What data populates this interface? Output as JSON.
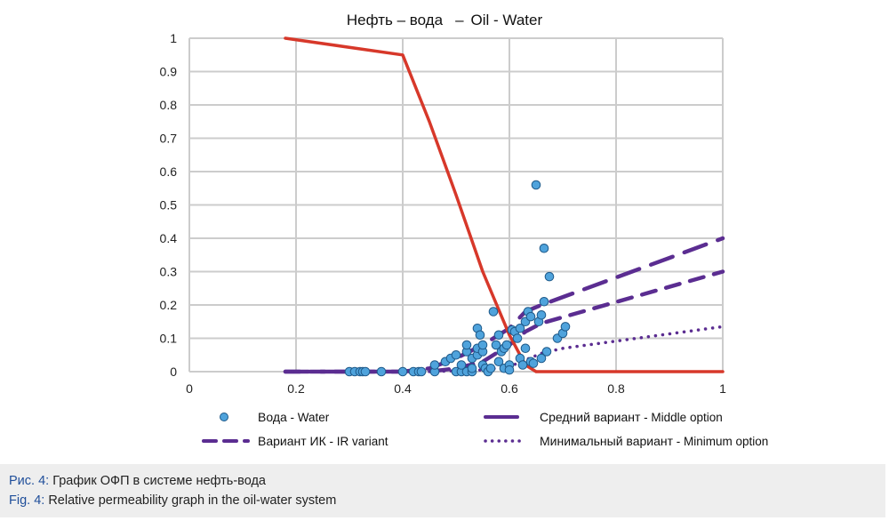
{
  "chart_data": {
    "type": "scatter",
    "title_ru": "Нефть – вода",
    "title_sep": "–",
    "title_en": "Oil - Water",
    "xlabel": "",
    "ylabel": "",
    "xlim": [
      0,
      1
    ],
    "ylim": [
      0,
      1
    ],
    "x_ticks": [
      "0",
      "0.2",
      "0.4",
      "0.6",
      "0.8",
      "1"
    ],
    "y_ticks": [
      "0",
      "0.1",
      "0.2",
      "0.3",
      "0.4",
      "0.5",
      "0.6",
      "0.7",
      "0.8",
      "0.9",
      "1"
    ],
    "grid": true,
    "legend_position": "bottom",
    "colors": {
      "oil": "#d7382a",
      "water_fill": "#4fa3dc",
      "water_edge": "#1f5a8a",
      "variant": "#5b2d91",
      "grid": "#cccccc"
    },
    "series": [
      {
        "name": "Oil",
        "kind": "line",
        "style": "solid",
        "color_key": "oil",
        "x": [
          0.18,
          0.4,
          0.45,
          0.5,
          0.55,
          0.6,
          0.63,
          0.65,
          1.0
        ],
        "y": [
          1.0,
          0.95,
          0.75,
          0.53,
          0.3,
          0.11,
          0.02,
          0.0,
          0.0
        ]
      },
      {
        "name_ru": "Вода",
        "name_en": "Water",
        "kind": "scatter",
        "points": [
          [
            0.3,
            0
          ],
          [
            0.31,
            0
          ],
          [
            0.32,
            0
          ],
          [
            0.325,
            0
          ],
          [
            0.33,
            0
          ],
          [
            0.36,
            0
          ],
          [
            0.4,
            0
          ],
          [
            0.42,
            0
          ],
          [
            0.43,
            0
          ],
          [
            0.435,
            0
          ],
          [
            0.46,
            0
          ],
          [
            0.46,
            0.02
          ],
          [
            0.48,
            0.03
          ],
          [
            0.49,
            0.04
          ],
          [
            0.5,
            0.05
          ],
          [
            0.5,
            0
          ],
          [
            0.51,
            0
          ],
          [
            0.52,
            0
          ],
          [
            0.53,
            0
          ],
          [
            0.53,
            0.01
          ],
          [
            0.51,
            0.02
          ],
          [
            0.52,
            0.06
          ],
          [
            0.52,
            0.08
          ],
          [
            0.53,
            0.04
          ],
          [
            0.54,
            0.05
          ],
          [
            0.54,
            0.07
          ],
          [
            0.54,
            0.13
          ],
          [
            0.545,
            0.11
          ],
          [
            0.55,
            0.02
          ],
          [
            0.55,
            0.06
          ],
          [
            0.55,
            0.08
          ],
          [
            0.555,
            0.01
          ],
          [
            0.56,
            0
          ],
          [
            0.565,
            0.01
          ],
          [
            0.57,
            0.18
          ],
          [
            0.575,
            0.08
          ],
          [
            0.58,
            0.11
          ],
          [
            0.58,
            0.03
          ],
          [
            0.585,
            0.06
          ],
          [
            0.59,
            0.07
          ],
          [
            0.59,
            0.01
          ],
          [
            0.595,
            0.08
          ],
          [
            0.6,
            0.02
          ],
          [
            0.6,
            0.005
          ],
          [
            0.605,
            0.125
          ],
          [
            0.61,
            0.12
          ],
          [
            0.615,
            0.1
          ],
          [
            0.62,
            0.13
          ],
          [
            0.62,
            0.04
          ],
          [
            0.625,
            0.02
          ],
          [
            0.63,
            0.15
          ],
          [
            0.63,
            0.07
          ],
          [
            0.635,
            0.18
          ],
          [
            0.64,
            0.03
          ],
          [
            0.64,
            0.165
          ],
          [
            0.645,
            0.025
          ],
          [
            0.65,
            0.56
          ],
          [
            0.655,
            0.15
          ],
          [
            0.66,
            0.17
          ],
          [
            0.665,
            0.37
          ],
          [
            0.665,
            0.21
          ],
          [
            0.67,
            0.06
          ],
          [
            0.675,
            0.285
          ],
          [
            0.69,
            0.1
          ],
          [
            0.7,
            0.115
          ],
          [
            0.705,
            0.135
          ],
          [
            0.66,
            0.04
          ]
        ]
      },
      {
        "name_ru": "Средний вариант",
        "name_en": "Middle option",
        "kind": "line",
        "style": "long-dash",
        "color_key": "variant",
        "x": [
          0.18,
          0.4,
          0.45,
          0.5,
          0.55,
          0.6,
          0.63,
          0.66,
          1.0
        ],
        "y": [
          0.0,
          0.0,
          0.01,
          0.04,
          0.08,
          0.13,
          0.18,
          0.2,
          0.4
        ]
      },
      {
        "name_ru": "Вариант ИК",
        "name_en": "IR variant",
        "kind": "line",
        "style": "dash",
        "color_key": "variant",
        "x": [
          0.18,
          0.45,
          0.5,
          0.55,
          0.6,
          0.63,
          0.66,
          1.0
        ],
        "y": [
          0.0,
          0.0,
          0.01,
          0.03,
          0.08,
          0.12,
          0.145,
          0.3
        ]
      },
      {
        "name_ru": "Минимальный вариант",
        "name_en": "Minimum option",
        "kind": "line",
        "style": "dotted",
        "color_key": "variant",
        "x": [
          0.18,
          0.45,
          0.55,
          0.6,
          0.63,
          0.66,
          0.7,
          1.0
        ],
        "y": [
          0.0,
          0.0,
          0.005,
          0.015,
          0.035,
          0.055,
          0.07,
          0.135
        ]
      }
    ],
    "legend": [
      {
        "ru": "Вода",
        "en": " - Water",
        "marker": "circle"
      },
      {
        "ru": "Средний вариант",
        "en": " - Middle option",
        "marker": "solid"
      },
      {
        "ru": "Вариант ИК",
        "en": " - IR variant",
        "marker": "dash"
      },
      {
        "ru": "Минимальный вариант",
        "en": " - Minimum option",
        "marker": "dotted"
      }
    ]
  },
  "caption": {
    "ru_prefix": "Рис. 4:",
    "ru_text": " График ОФП в системе нефть-вода",
    "en_prefix": "Fig. 4:",
    "en_text": " Relative permeability graph in the oil-water system"
  }
}
